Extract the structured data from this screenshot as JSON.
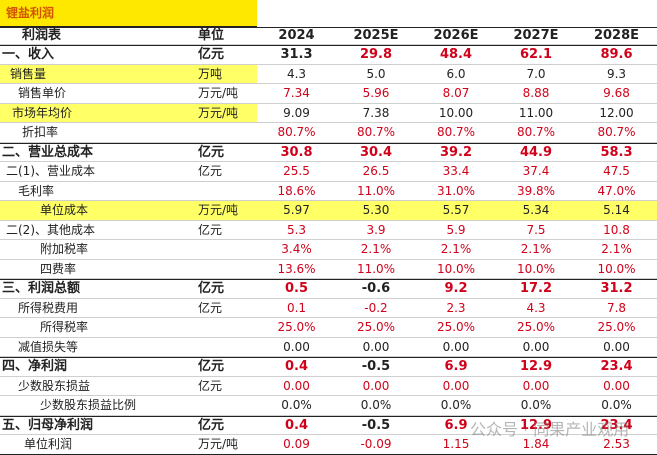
{
  "title": "锂盐利润",
  "table": {
    "header": [
      "利润表",
      "单位",
      "2024",
      "2025E",
      "2026E",
      "2027E",
      "2028E"
    ],
    "rows": [
      [
        "一、收入",
        "亿元",
        "31.3",
        "29.8",
        "48.4",
        "62.1",
        "89.6"
      ],
      [
        "销售量",
        "万吨",
        "4.3",
        "5.0",
        "6.0",
        "7.0",
        "9.3"
      ],
      [
        "销售单价",
        "万元/吨",
        "7.34",
        "5.96",
        "8.07",
        "8.88",
        "9.68"
      ],
      [
        "市场年均价",
        "万元/吨",
        "9.09",
        "7.38",
        "10.00",
        "11.00",
        "12.00"
      ],
      [
        "折扣率",
        null,
        "80.7%",
        "80.7%",
        "80.7%",
        "80.7%",
        "80.7%"
      ],
      [
        "二、营业总成本",
        "亿元",
        "30.8",
        "30.4",
        "39.2",
        "44.9",
        "58.3"
      ],
      [
        "二(1)、营业成本",
        "亿元",
        "25.5",
        "26.5",
        "33.4",
        "37.4",
        "47.5"
      ],
      [
        "毛利率",
        null,
        "18.6%",
        "11.0%",
        "31.0%",
        "39.8%",
        "47.0%"
      ],
      [
        "单位成本",
        "万元/吨",
        "5.97",
        "5.30",
        "5.57",
        "5.34",
        "5.14"
      ],
      [
        "二(2)、其他成本",
        "亿元",
        "5.3",
        "3.9",
        "5.9",
        "7.5",
        "10.8"
      ],
      [
        "附加税率",
        null,
        "3.4%",
        "2.1%",
        "2.1%",
        "2.1%",
        "2.1%"
      ],
      [
        "四费率",
        null,
        "13.6%",
        "11.0%",
        "10.0%",
        "10.0%",
        "10.0%"
      ],
      [
        "三、利润总额",
        "亿元",
        "0.5",
        "-0.6",
        "9.2",
        "17.2",
        "31.2"
      ],
      [
        "所得税费用",
        "亿元",
        "0.1",
        "-0.2",
        "2.3",
        "4.3",
        "7.8"
      ],
      [
        "所得税率",
        null,
        "25.0%",
        "25.0%",
        "25.0%",
        "25.0%",
        "25.0%"
      ],
      [
        "减值损失等",
        null,
        "0.00",
        "0.00",
        "0.00",
        "0.00",
        "0.00"
      ],
      [
        "四、净利润",
        "亿元",
        "0.4",
        "-0.5",
        "6.9",
        "12.9",
        "23.4"
      ],
      [
        "少数股东损益",
        "亿元",
        "0.00",
        "0.00",
        "0.00",
        "0.00",
        "0.00"
      ],
      [
        "少数股东损益比例",
        null,
        "0.0%",
        "0.0%",
        "0.0%",
        "0.0%",
        "0.0%"
      ],
      [
        "五、归母净利润",
        "亿元",
        "0.4",
        "-0.5",
        "6.9",
        "12.9",
        "23.4"
      ],
      [
        "单位利润",
        "万元/吨",
        "0.09",
        "-0.09",
        "1.15",
        "1.84",
        "2.53"
      ]
    ]
  },
  "watermark": "公众号 · 同果产业观用"
}
